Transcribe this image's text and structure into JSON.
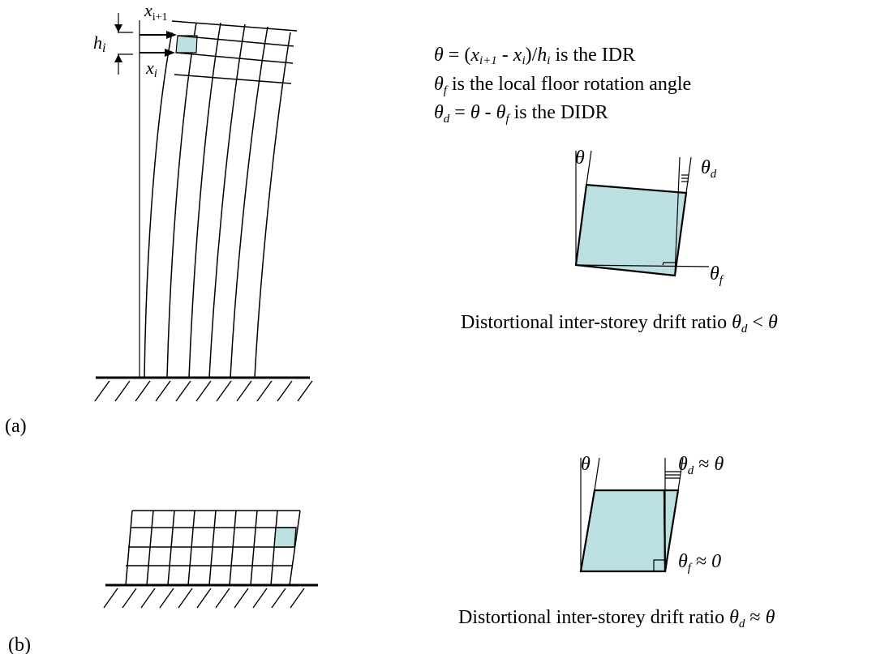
{
  "colors": {
    "fill": "#bcdfe1",
    "stroke": "#000000"
  },
  "panel_a": {
    "label": "(a)",
    "dims": {
      "x_upper": {
        "sym": "x",
        "sub": "i+1"
      },
      "height": {
        "sym": "h",
        "sub": "i"
      },
      "x_lower": {
        "sym": "x",
        "sub": "i"
      }
    },
    "definitions": {
      "idr": {
        "theta": "θ",
        "eq": " = (",
        "x1": "x",
        "x1_sub": "i+1",
        "minus": " - ",
        "x2": "x",
        "x2_sub": "i",
        "close": ")/",
        "h": "h",
        "h_sub": "i",
        "tail": " is the IDR"
      },
      "floor": {
        "theta": "θ",
        "sub": "f",
        "tail": "  is the local floor rotation angle"
      },
      "didr": {
        "theta": "θ",
        "sub": "d",
        "mid": " = ",
        "theta2": "θ",
        "minus": " - ",
        "theta3": "θ",
        "sub3": "f",
        "tail": "  is the DIDR"
      }
    },
    "detail": {
      "theta": "θ",
      "theta_d": {
        "sym": "θ",
        "sub": "d"
      },
      "theta_f": {
        "sym": "θ",
        "sub": "f"
      }
    },
    "caption": {
      "text": "Distortional inter-storey drift ratio ",
      "sym": "θ",
      "sub": "d",
      "rel": " < ",
      "rhs": "θ"
    }
  },
  "panel_b": {
    "label": "(b)",
    "detail": {
      "theta": "θ",
      "theta_d": {
        "sym": "θ",
        "sub": "d",
        "rel": " ≈ ",
        "rhs": "θ"
      },
      "theta_f": {
        "sym": "θ",
        "sub": "f",
        "rel": " ≈ ",
        "rhs": "0"
      }
    },
    "caption": {
      "text": "Distortional inter-storey drift ratio ",
      "sym": "θ",
      "sub": "d",
      "rel": " ≈ ",
      "rhs": "θ"
    }
  }
}
